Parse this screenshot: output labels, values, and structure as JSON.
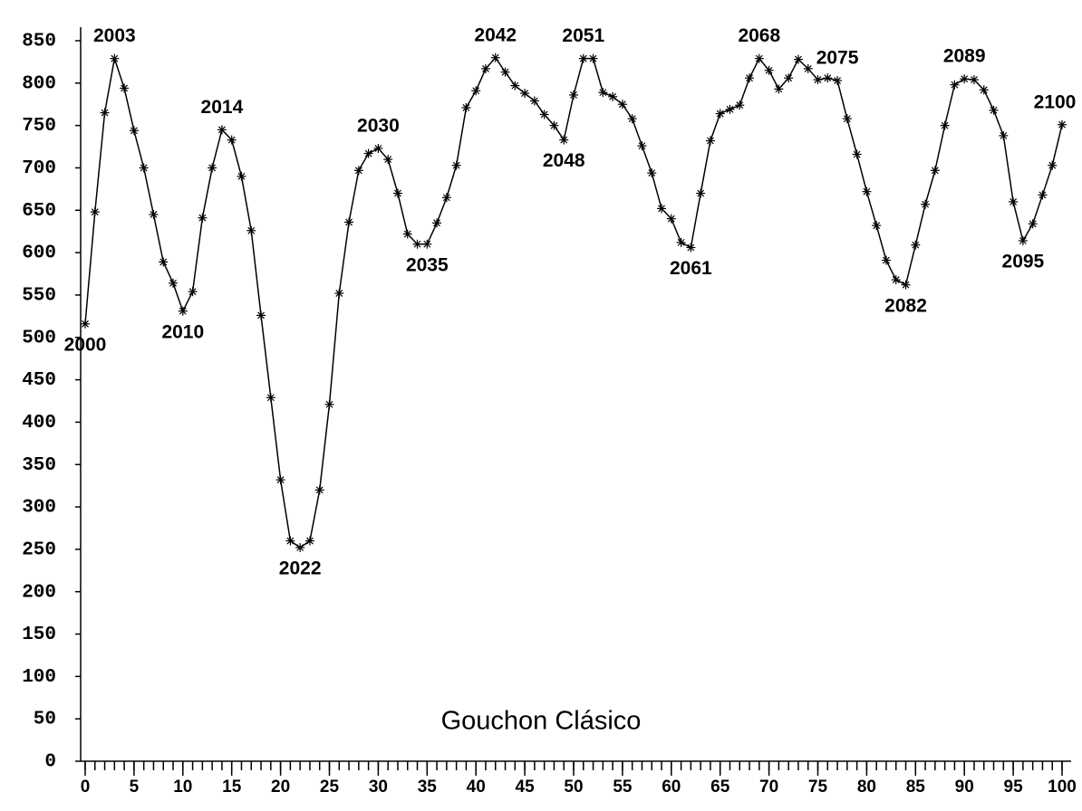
{
  "chart_data": {
    "type": "line",
    "title": "Gouchon Clásico",
    "x": [
      0,
      1,
      2,
      3,
      4,
      5,
      6,
      7,
      8,
      9,
      10,
      11,
      12,
      13,
      14,
      15,
      16,
      17,
      18,
      19,
      20,
      21,
      22,
      23,
      24,
      25,
      26,
      27,
      28,
      29,
      30,
      31,
      32,
      33,
      34,
      35,
      36,
      37,
      38,
      39,
      40,
      41,
      42,
      43,
      44,
      45,
      46,
      47,
      48,
      49,
      50,
      51,
      52,
      53,
      54,
      55,
      56,
      57,
      58,
      59,
      60,
      61,
      62,
      63,
      64,
      65,
      66,
      67,
      68,
      69,
      70,
      71,
      72,
      73,
      74,
      75,
      76,
      77,
      78,
      79,
      80,
      81,
      82,
      83,
      84,
      85,
      86,
      87,
      88,
      89,
      90,
      91,
      92,
      93,
      94,
      95,
      96,
      97,
      98,
      99,
      100
    ],
    "values": [
      516,
      648,
      765,
      829,
      794,
      744,
      700,
      645,
      589,
      564,
      531,
      554,
      641,
      700,
      745,
      733,
      690,
      626,
      526,
      429,
      332,
      260,
      252,
      260,
      320,
      421,
      552,
      636,
      697,
      717,
      723,
      710,
      670,
      622,
      610,
      610,
      635,
      665,
      703,
      771,
      791,
      817,
      830,
      813,
      797,
      788,
      779,
      763,
      750,
      733,
      786,
      829,
      829,
      789,
      784,
      775,
      758,
      726,
      694,
      652,
      640,
      612,
      606,
      670,
      732,
      764,
      769,
      774,
      806,
      829,
      815,
      793,
      806,
      828,
      817,
      804,
      806,
      803,
      758,
      716,
      672,
      632,
      591,
      568,
      562,
      609,
      657,
      697,
      750,
      798,
      805,
      804,
      792,
      768,
      738,
      660,
      614,
      634,
      668,
      703,
      751
    ],
    "color": "#000000",
    "xlim": [
      0,
      100
    ],
    "xticks": [
      0,
      5,
      10,
      15,
      20,
      25,
      30,
      35,
      40,
      45,
      50,
      55,
      60,
      65,
      70,
      75,
      80,
      85,
      90,
      95,
      100
    ],
    "ylim": [
      0,
      850
    ],
    "yticks": [
      0,
      50,
      100,
      150,
      200,
      250,
      300,
      350,
      400,
      450,
      500,
      550,
      600,
      650,
      700,
      750,
      800,
      850
    ],
    "annotations": [
      {
        "text": "2000",
        "x": 0
      },
      {
        "text": "2003",
        "x": 3
      },
      {
        "text": "2010",
        "x": 10
      },
      {
        "text": "2014",
        "x": 14
      },
      {
        "text": "2022",
        "x": 22
      },
      {
        "text": "2030",
        "x": 30
      },
      {
        "text": "2035",
        "x": 35
      },
      {
        "text": "2042",
        "x": 42
      },
      {
        "text": "2048",
        "x": 49
      },
      {
        "text": "2051",
        "x": 51
      },
      {
        "text": "2061",
        "x": 62
      },
      {
        "text": "2068",
        "x": 69
      },
      {
        "text": "2075",
        "x": 77
      },
      {
        "text": "2082",
        "x": 84
      },
      {
        "text": "2089",
        "x": 90
      },
      {
        "text": "2095",
        "x": 96
      },
      {
        "text": "2100",
        "x": 100
      }
    ]
  }
}
